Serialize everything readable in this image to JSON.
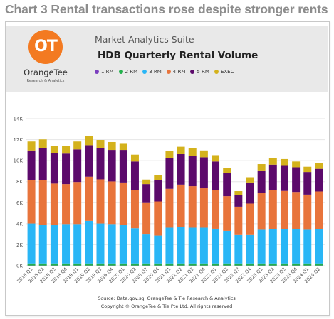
{
  "page_title": "Chart 3 Rental transactions rose despite stronger rents",
  "header": {
    "suite_name": "Market Analytics Suite",
    "logo_monogram": "OT",
    "logo_name": "OrangeTee",
    "logo_tagline": "Research & Analytics"
  },
  "source": {
    "line1": "Source: Data.gov.sg, OrangeTee & Tie Research & Analytics",
    "line2": "Copyright © OrangeTee & Tie Pte Ltd. All rights reserved"
  },
  "colors": {
    "banner": "#e9e9e9",
    "logo": "#f37a21"
  },
  "chart_data": {
    "type": "bar",
    "stacked": true,
    "title": "HDB Quarterly Rental Volume",
    "xlabel": "",
    "ylabel": "",
    "ylim": [
      0,
      14000
    ],
    "yticks": [
      0,
      2000,
      4000,
      6000,
      8000,
      10000,
      12000,
      14000
    ],
    "ytick_labels": [
      "0K",
      "2K",
      "4K",
      "6K",
      "8K",
      "10K",
      "12K",
      "14K"
    ],
    "grid": true,
    "legend_position": "top-left",
    "categories": [
      "2018 Q1",
      "2018 Q2",
      "2018 Q3",
      "2018 Q4",
      "2019 Q1",
      "2019 Q2",
      "2019 Q3",
      "2019 Q4",
      "2020 Q1",
      "2020 Q2",
      "2020 Q3",
      "2020 Q4",
      "2021 Q1",
      "2021 Q2",
      "2021 Q3",
      "2021 Q4",
      "2022 Q1",
      "2022 Q2",
      "2022 Q3",
      "2022 Q4",
      "2023 Q1",
      "2023 Q2",
      "2023 Q3",
      "2023 Q4",
      "2024 Q1",
      "2024 Q2"
    ],
    "series": [
      {
        "name": "1 RM",
        "color": "#7b3fbf",
        "values": [
          20,
          20,
          20,
          20,
          20,
          20,
          20,
          20,
          20,
          20,
          20,
          20,
          20,
          20,
          20,
          20,
          20,
          20,
          20,
          20,
          20,
          20,
          20,
          20,
          20,
          20
        ]
      },
      {
        "name": "2 RM",
        "color": "#22b14c",
        "values": [
          200,
          200,
          200,
          200,
          200,
          200,
          200,
          200,
          200,
          200,
          200,
          200,
          200,
          200,
          200,
          200,
          200,
          200,
          200,
          200,
          200,
          200,
          200,
          200,
          200,
          200
        ]
      },
      {
        "name": "3 RM",
        "color": "#29b6f6",
        "values": [
          3800,
          3700,
          3650,
          3750,
          3750,
          4050,
          3800,
          3750,
          3700,
          3350,
          2750,
          2650,
          3400,
          3450,
          3400,
          3400,
          3300,
          3100,
          2700,
          2700,
          3200,
          3250,
          3250,
          3250,
          3200,
          3250
        ]
      },
      {
        "name": "4 RM",
        "color": "#e8743b",
        "values": [
          4100,
          4200,
          3950,
          3800,
          4000,
          4200,
          4200,
          4050,
          4000,
          3600,
          3000,
          3250,
          3700,
          4050,
          3950,
          3750,
          3700,
          3300,
          2700,
          3000,
          3500,
          3750,
          3650,
          3550,
          3350,
          3600
        ]
      },
      {
        "name": "5 RM",
        "color": "#5c0a6b",
        "values": [
          2850,
          3050,
          2900,
          2900,
          3100,
          3000,
          3000,
          3000,
          3100,
          2750,
          1800,
          2050,
          2900,
          2900,
          2900,
          2950,
          2700,
          2200,
          1100,
          2000,
          2150,
          2400,
          2450,
          2350,
          2150,
          2150
        ]
      },
      {
        "name": "EXEC",
        "color": "#d4b21c",
        "values": [
          850,
          850,
          650,
          750,
          750,
          850,
          750,
          750,
          650,
          650,
          430,
          480,
          700,
          700,
          700,
          650,
          600,
          450,
          380,
          500,
          600,
          600,
          580,
          550,
          500,
          550
        ]
      }
    ]
  }
}
